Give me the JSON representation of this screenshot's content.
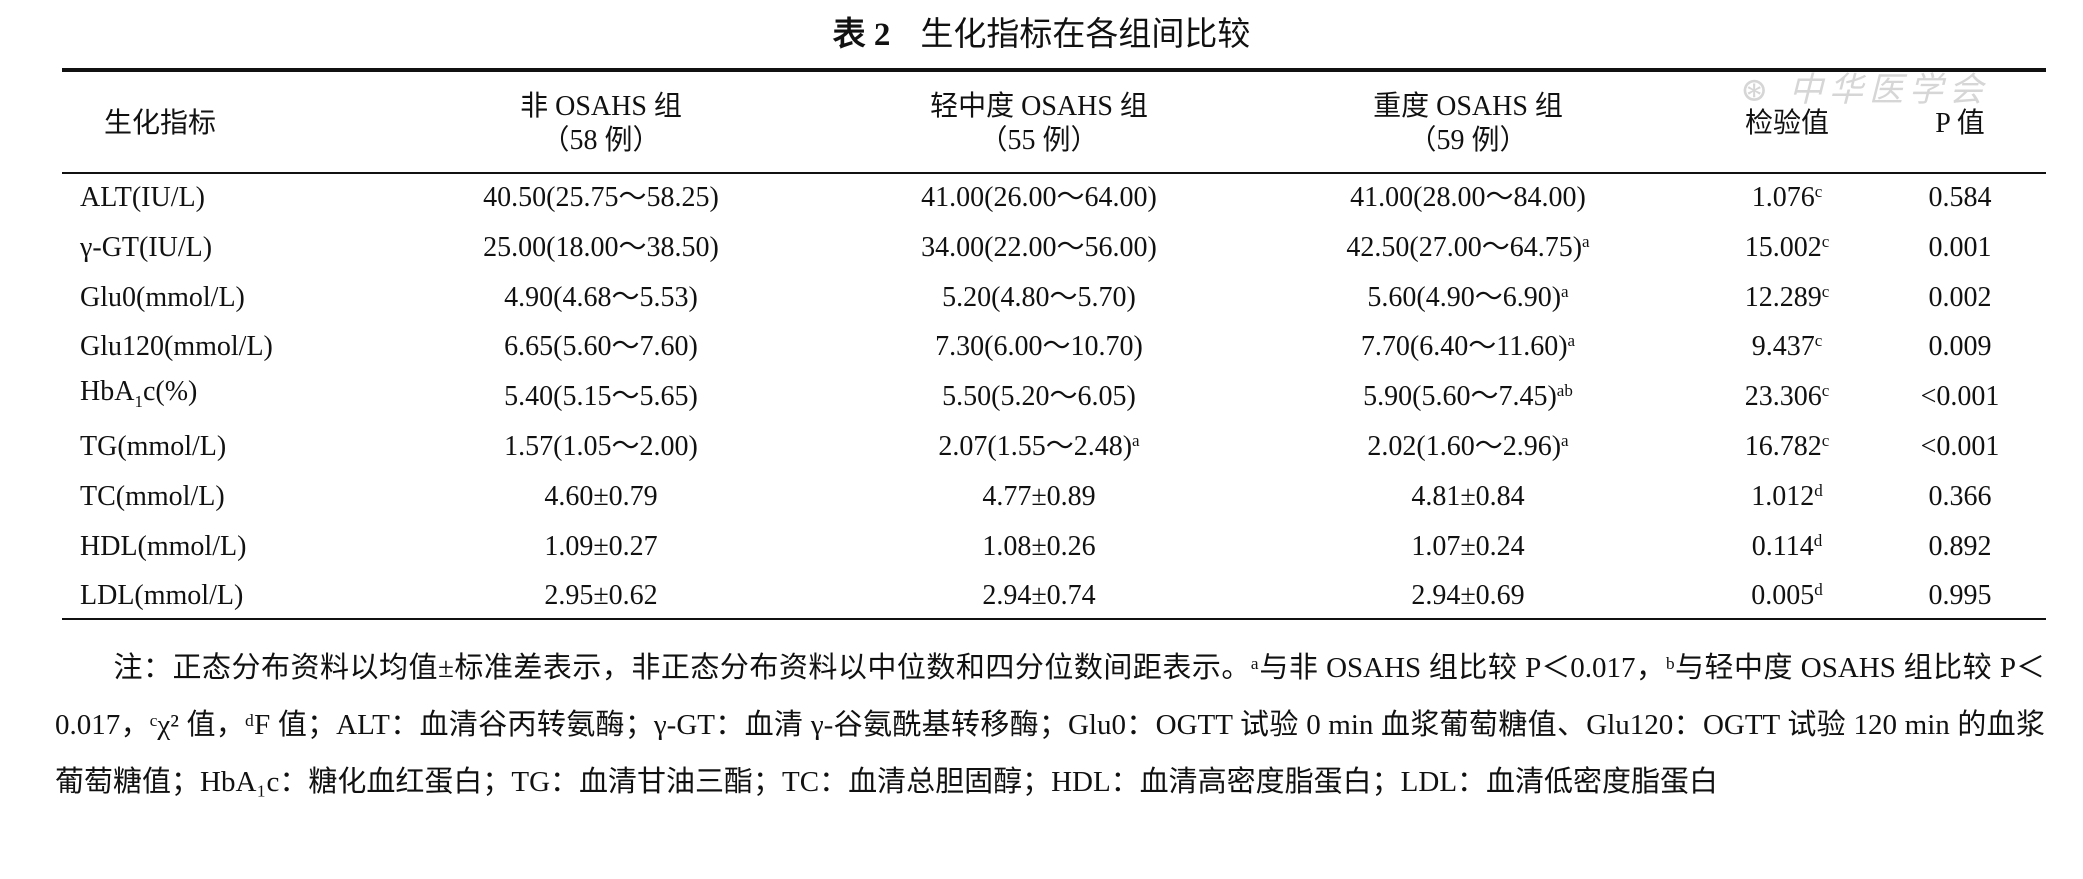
{
  "title": {
    "label": "表 2",
    "text": "生化指标在各组间比较"
  },
  "watermark": "中华医学会",
  "headers": [
    {
      "l1": "生化指标",
      "l2": ""
    },
    {
      "l1": "非 OSAHS 组",
      "l2": "（58 例）"
    },
    {
      "l1": "轻中度 OSAHS 组",
      "l2": "（55 例）"
    },
    {
      "l1": "重度 OSAHS 组",
      "l2": "（59 例）"
    },
    {
      "l1": "检验值",
      "l2": ""
    },
    {
      "l1": "P 值",
      "l2": ""
    }
  ],
  "rows": [
    {
      "name": "ALT(IU/L)",
      "c1": "40.50(25.75～58.25)",
      "c1s": "",
      "c2": "41.00(26.00～64.00)",
      "c2s": "",
      "c3": "41.00(28.00～84.00)",
      "c3s": "",
      "t": "1.076",
      "ts": "c",
      "p": "0.584"
    },
    {
      "name": "γ-GT(IU/L)",
      "c1": "25.00(18.00～38.50)",
      "c1s": "",
      "c2": "34.00(22.00～56.00)",
      "c2s": "",
      "c3": "42.50(27.00～64.75)",
      "c3s": "a",
      "t": "15.002",
      "ts": "c",
      "p": "0.001"
    },
    {
      "name": "Glu0(mmol/L)",
      "c1": "4.90(4.68～5.53)",
      "c1s": "",
      "c2": "5.20(4.80～5.70)",
      "c2s": "",
      "c3": "5.60(4.90～6.90)",
      "c3s": "a",
      "t": "12.289",
      "ts": "c",
      "p": "0.002"
    },
    {
      "name": "Glu120(mmol/L)",
      "c1": "6.65(5.60～7.60)",
      "c1s": "",
      "c2": "7.30(6.00～10.70)",
      "c2s": "",
      "c3": "7.70(6.40～11.60)",
      "c3s": "a",
      "t": "9.437",
      "ts": "c",
      "p": "0.009"
    },
    {
      "name": "HbA1c(%)",
      "c1": "5.40(5.15～5.65)",
      "c1s": "",
      "c2": "5.50(5.20～6.05)",
      "c2s": "",
      "c3": "5.90(5.60～7.45)",
      "c3s": "ab",
      "t": "23.306",
      "ts": "c",
      "p": "<0.001"
    },
    {
      "name": "TG(mmol/L)",
      "c1": "1.57(1.05～2.00)",
      "c1s": "",
      "c2": "2.07(1.55～2.48)",
      "c2s": "a",
      "c3": "2.02(1.60～2.96)",
      "c3s": "a",
      "t": "16.782",
      "ts": "c",
      "p": "<0.001"
    },
    {
      "name": "TC(mmol/L)",
      "c1": "4.60±0.79",
      "c1s": "",
      "c2": "4.77±0.89",
      "c2s": "",
      "c3": "4.81±0.84",
      "c3s": "",
      "t": "1.012",
      "ts": "d",
      "p": "0.366"
    },
    {
      "name": "HDL(mmol/L)",
      "c1": "1.09±0.27",
      "c1s": "",
      "c2": "1.08±0.26",
      "c2s": "",
      "c3": "1.07±0.24",
      "c3s": "",
      "t": "0.114",
      "ts": "d",
      "p": "0.892"
    },
    {
      "name": "LDL(mmol/L)",
      "c1": "2.95±0.62",
      "c1s": "",
      "c2": "2.94±0.74",
      "c2s": "",
      "c3": "2.94±0.69",
      "c3s": "",
      "t": "0.005",
      "ts": "d",
      "p": "0.995"
    }
  ],
  "note": "注：正态分布资料以均值±标准差表示，非正态分布资料以中位数和四分位数间距表示。ᵃ与非 OSAHS 组比较 P＜0.017，ᵇ与轻中度 OSAHS 组比较 P＜0.017，ᶜχ² 值，ᵈF 值；ALT：血清谷丙转氨酶；γ-GT：血清 γ-谷氨酰基转移酶；Glu0：OGTT 试验 0 min 血浆葡萄糖值、Glu120：OGTT 试验 120 min 的血浆葡萄糖值；HbA₁c：糖化血红蛋白；TG：血清甘油三酯；TC：血清总胆固醇；HDL：血清高密度脂蛋白；LDL：血清低密度脂蛋白"
}
